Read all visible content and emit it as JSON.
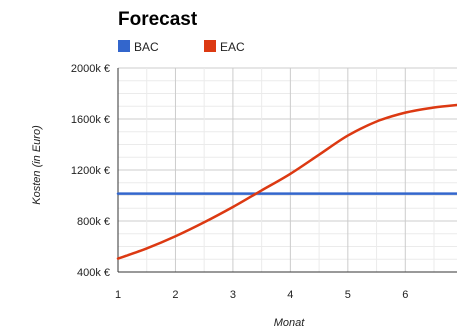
{
  "chart_data": {
    "type": "line",
    "title": "Forecast",
    "xlabel": "Monat",
    "ylabel": "Kosten (in Euro)",
    "x": [
      1,
      1.5,
      2,
      2.5,
      3,
      3.5,
      4,
      4.5,
      5,
      5.5,
      6,
      6.5,
      6.9
    ],
    "xlim": [
      1,
      6.9
    ],
    "xticks": [
      "1",
      "2",
      "3",
      "4",
      "5",
      "6"
    ],
    "ylim": [
      400,
      2000
    ],
    "yticks": [
      "400k €",
      "800k €",
      "1200k €",
      "1600k €",
      "2000k €"
    ],
    "grid": true,
    "legend_position": "top-left",
    "series": [
      {
        "name": "BAC",
        "color": "#3366cc",
        "values": [
          1015,
          1015,
          1015,
          1015,
          1015,
          1015,
          1015,
          1015,
          1015,
          1015,
          1015,
          1015,
          1015
        ]
      },
      {
        "name": "EAC",
        "color": "#dc3912",
        "values": [
          505,
          585,
          680,
          790,
          910,
          1040,
          1170,
          1320,
          1470,
          1580,
          1650,
          1690,
          1710
        ]
      }
    ]
  }
}
